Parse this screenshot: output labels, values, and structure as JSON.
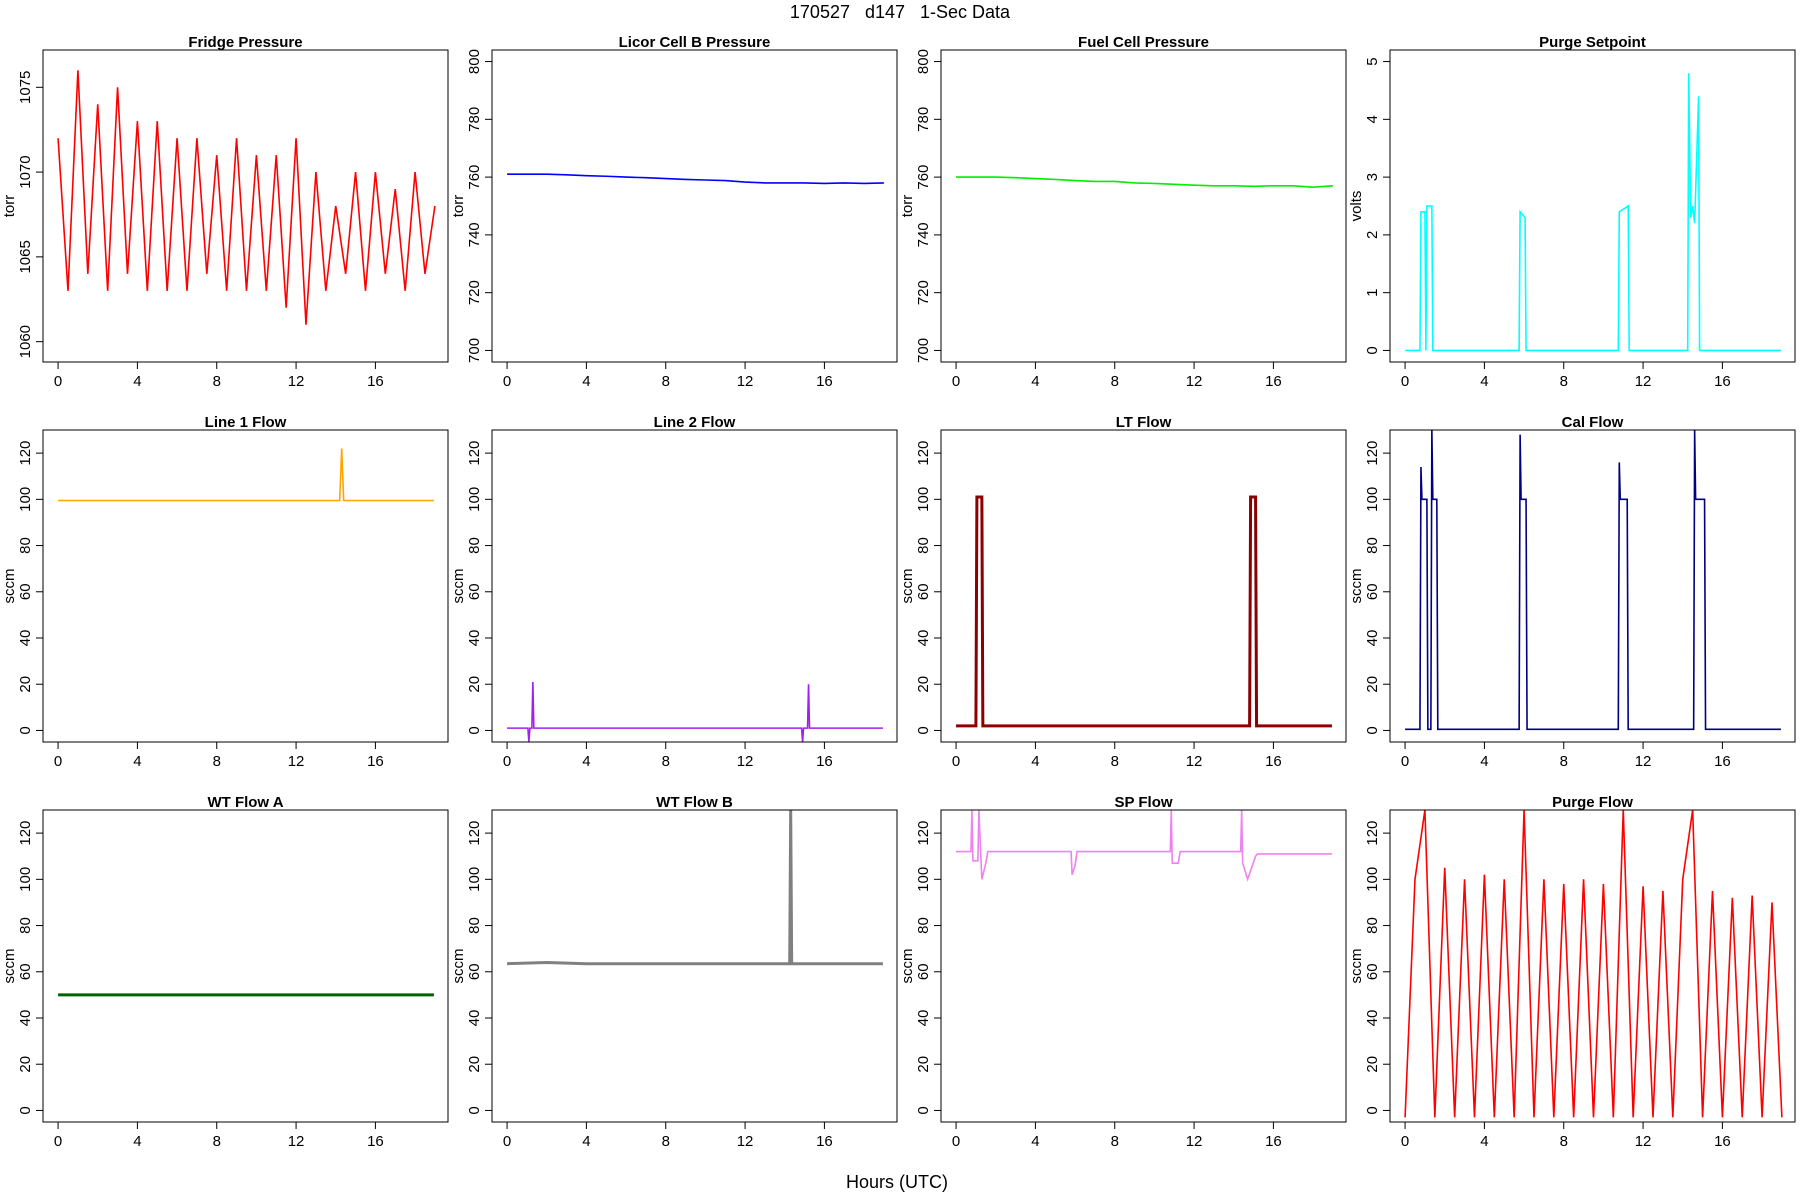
{
  "title": "170527   d147   1-Sec Data",
  "xlabel": "Hours (UTC)",
  "chart_data": [
    {
      "type": "line",
      "title": "Fridge Pressure",
      "ylabel": "torr",
      "x": [
        0,
        0.5,
        1,
        1.5,
        2,
        2.5,
        3,
        3.5,
        4,
        4.5,
        5,
        5.5,
        6,
        6.5,
        7,
        7.5,
        8,
        8.5,
        9,
        9.5,
        10,
        10.5,
        11,
        11.5,
        12,
        12.5,
        13,
        13.5,
        14,
        14.5,
        15,
        15.5,
        16,
        16.5,
        17,
        17.5,
        18,
        18.5,
        19
      ],
      "series": [
        {
          "color": "#ff0000",
          "values": [
            1072,
            1063,
            1076,
            1064,
            1074,
            1063,
            1075,
            1064,
            1073,
            1063,
            1073,
            1063,
            1072,
            1063,
            1072,
            1064,
            1071,
            1063,
            1072,
            1063,
            1071,
            1063,
            1071,
            1062,
            1072,
            1061,
            1070,
            1063,
            1068,
            1064,
            1070,
            1063,
            1070,
            1064,
            1069,
            1063,
            1070,
            1064,
            1068
          ]
        }
      ],
      "xlim": [
        -0.76,
        19.66
      ],
      "ylim": [
        1058.8,
        1077.2
      ],
      "xticks": [
        0,
        4,
        8,
        12,
        16
      ],
      "yticks": [
        1060,
        1065,
        1070,
        1075
      ]
    },
    {
      "type": "line",
      "title": "Licor Cell B Pressure",
      "ylabel": "torr",
      "x": [
        0,
        1,
        2,
        3,
        4,
        5,
        6,
        7,
        8,
        9,
        10,
        11,
        12,
        13,
        14,
        15,
        16,
        17,
        18,
        19
      ],
      "series": [
        {
          "color": "#0000ff",
          "values": [
            761,
            761,
            761,
            760.8,
            760.5,
            760.3,
            760,
            759.8,
            759.5,
            759.2,
            759,
            758.8,
            758.3,
            758,
            758,
            758,
            757.8,
            758,
            757.8,
            758
          ]
        }
      ],
      "xlim": [
        -0.76,
        19.66
      ],
      "ylim": [
        696,
        804
      ],
      "xticks": [
        0,
        4,
        8,
        12,
        16
      ],
      "yticks": [
        700,
        720,
        740,
        760,
        780,
        800
      ]
    },
    {
      "type": "line",
      "title": "Fuel Cell Pressure",
      "ylabel": "torr",
      "x": [
        0,
        1,
        2,
        3,
        4,
        5,
        6,
        7,
        8,
        9,
        10,
        11,
        12,
        13,
        14,
        15,
        16,
        17,
        18,
        19
      ],
      "series": [
        {
          "color": "#00ee00",
          "values": [
            760,
            760,
            760,
            759.8,
            759.5,
            759.2,
            758.8,
            758.5,
            758.5,
            758,
            757.8,
            757.5,
            757.2,
            757,
            757,
            756.8,
            757,
            757,
            756.5,
            757
          ]
        }
      ],
      "xlim": [
        -0.76,
        19.66
      ],
      "ylim": [
        696,
        804
      ],
      "xticks": [
        0,
        4,
        8,
        12,
        16
      ],
      "yticks": [
        700,
        720,
        740,
        760,
        780,
        800
      ]
    },
    {
      "type": "line",
      "title": "Purge Setpoint",
      "ylabel": "volts",
      "x": [
        0,
        0.75,
        0.8,
        1.0,
        1.05,
        1.1,
        1.35,
        1.4,
        5.75,
        5.8,
        6.05,
        6.1,
        10.75,
        10.8,
        11.25,
        11.3,
        14.25,
        14.3,
        14.4,
        14.5,
        14.6,
        14.8,
        14.85,
        18.95
      ],
      "series": [
        {
          "color": "#00ffff",
          "values": [
            0,
            0,
            2.4,
            2.4,
            0,
            2.5,
            2.5,
            0,
            0,
            2.4,
            2.3,
            0,
            0,
            2.4,
            2.5,
            0,
            0,
            4.8,
            2.3,
            2.5,
            2.2,
            4.4,
            0,
            0
          ]
        }
      ],
      "xlim": [
        -0.76,
        19.66
      ],
      "ylim": [
        -0.2,
        5.2
      ],
      "xticks": [
        0,
        4,
        8,
        12,
        16
      ],
      "yticks": [
        0,
        1,
        2,
        3,
        4,
        5
      ]
    },
    {
      "type": "line",
      "title": "Line 1 Flow",
      "ylabel": "sccm",
      "x": [
        0,
        2,
        4,
        6,
        8,
        10,
        12,
        14.2,
        14.3,
        14.4,
        16,
        18,
        18.95
      ],
      "series": [
        {
          "color": "#ffa500",
          "values": [
            99.5,
            99.5,
            99.5,
            99.5,
            99.5,
            99.5,
            99.5,
            99.5,
            122,
            99.5,
            99.5,
            99.5,
            99.5
          ]
        }
      ],
      "xlim": [
        -0.76,
        19.66
      ],
      "ylim": [
        -5,
        130
      ],
      "xticks": [
        0,
        4,
        8,
        12,
        16
      ],
      "yticks": [
        0,
        20,
        40,
        60,
        80,
        100,
        120
      ]
    },
    {
      "type": "line",
      "title": "Line 2 Flow",
      "ylabel": "sccm",
      "x": [
        0,
        1.05,
        1.1,
        1.15,
        1.25,
        1.3,
        1.35,
        4,
        8,
        12,
        14.85,
        14.9,
        14.95,
        15.15,
        15.2,
        15.25,
        18.95
      ],
      "series": [
        {
          "color": "#a020f0",
          "values": [
            1,
            1,
            -5,
            1,
            1,
            21,
            1,
            1,
            1,
            1,
            1,
            -5,
            1,
            1,
            20,
            1,
            1
          ]
        }
      ],
      "xlim": [
        -0.76,
        19.66
      ],
      "ylim": [
        -5,
        130
      ],
      "xticks": [
        0,
        4,
        8,
        12,
        16
      ],
      "yticks": [
        0,
        20,
        40,
        60,
        80,
        100,
        120
      ]
    },
    {
      "type": "line",
      "title": "LT Flow",
      "ylabel": "sccm",
      "x": [
        0,
        1.0,
        1.05,
        1.3,
        1.35,
        14.8,
        14.85,
        15.1,
        15.15,
        18.95
      ],
      "series": [
        {
          "color": "#8b0000",
          "values": [
            2,
            2,
            101,
            101,
            2,
            2,
            101,
            101,
            2,
            2
          ]
        }
      ],
      "xlim": [
        -0.76,
        19.66
      ],
      "ylim": [
        -5,
        130
      ],
      "xticks": [
        0,
        4,
        8,
        12,
        16
      ],
      "yticks": [
        0,
        20,
        40,
        60,
        80,
        100,
        120
      ]
    },
    {
      "type": "line",
      "title": "Cal Flow",
      "ylabel": "sccm",
      "x": [
        0,
        0.75,
        0.8,
        0.85,
        1.1,
        1.15,
        1.3,
        1.35,
        1.4,
        1.6,
        1.65,
        5.75,
        5.8,
        5.85,
        6.1,
        6.15,
        10.75,
        10.8,
        10.85,
        11.2,
        11.25,
        14.55,
        14.6,
        14.65,
        15.1,
        15.15,
        18.95
      ],
      "series": [
        {
          "color": "#000080",
          "values": [
            0.5,
            0.5,
            114,
            100,
            100,
            0.5,
            0.5,
            130,
            100,
            100,
            0.5,
            0.5,
            128,
            100,
            100,
            0.5,
            0.5,
            116,
            100,
            100,
            0.5,
            0.5,
            130,
            100,
            100,
            0.5,
            0.5
          ]
        }
      ],
      "xlim": [
        -0.76,
        19.66
      ],
      "ylim": [
        -5,
        130
      ],
      "xticks": [
        0,
        4,
        8,
        12,
        16
      ],
      "yticks": [
        0,
        20,
        40,
        60,
        80,
        100,
        120
      ]
    },
    {
      "type": "line",
      "title": "WT Flow A",
      "ylabel": "sccm",
      "x": [
        0,
        4,
        8,
        12,
        16,
        18.95
      ],
      "series": [
        {
          "color": "#006400",
          "values": [
            50,
            50,
            50,
            50,
            50,
            50
          ]
        }
      ],
      "xlim": [
        -0.76,
        19.66
      ],
      "ylim": [
        -5,
        130
      ],
      "xticks": [
        0,
        4,
        8,
        12,
        16
      ],
      "yticks": [
        0,
        20,
        40,
        60,
        80,
        100,
        120
      ]
    },
    {
      "type": "line",
      "title": "WT Flow B",
      "ylabel": "sccm",
      "x": [
        0,
        2,
        4,
        8,
        12,
        14.25,
        14.3,
        14.35,
        16,
        18.95
      ],
      "series": [
        {
          "color": "#808080",
          "values": [
            63.5,
            64,
            63.5,
            63.5,
            63.5,
            63.5,
            130,
            63.5,
            63.5,
            63.5
          ]
        }
      ],
      "xlim": [
        -0.76,
        19.66
      ],
      "ylim": [
        -5,
        130
      ],
      "xticks": [
        0,
        4,
        8,
        12,
        16
      ],
      "yticks": [
        0,
        20,
        40,
        60,
        80,
        100,
        120
      ]
    },
    {
      "type": "line",
      "title": "SP Flow",
      "ylabel": "sccm",
      "x": [
        0,
        0.75,
        0.8,
        0.85,
        1.1,
        1.15,
        1.3,
        1.5,
        1.6,
        4,
        5.8,
        5.85,
        6,
        6.1,
        8,
        10.8,
        10.85,
        10.9,
        11.2,
        11.3,
        14.35,
        14.4,
        14.45,
        14.7,
        14.9,
        15.1,
        15.2,
        18.95
      ],
      "series": [
        {
          "color": "#ee82ee",
          "values": [
            112,
            112,
            130,
            108,
            108,
            130,
            100,
            107,
            112,
            112,
            112,
            102,
            106,
            112,
            112,
            112,
            130,
            107,
            107,
            112,
            112,
            130,
            107,
            100,
            105,
            110,
            111,
            111
          ]
        }
      ],
      "xlim": [
        -0.76,
        19.66
      ],
      "ylim": [
        -5,
        130
      ],
      "xticks": [
        0,
        4,
        8,
        12,
        16
      ],
      "yticks": [
        0,
        20,
        40,
        60,
        80,
        100,
        120
      ]
    },
    {
      "type": "line",
      "title": "Purge Flow",
      "ylabel": "sccm",
      "x": [
        0,
        0.5,
        1,
        1.5,
        2,
        2.5,
        3,
        3.5,
        4,
        4.5,
        5,
        5.5,
        6,
        6.5,
        7,
        7.5,
        8,
        8.5,
        9,
        9.5,
        10,
        10.5,
        11,
        11.5,
        12,
        12.5,
        13,
        13.5,
        14,
        14.5,
        15,
        15.5,
        16,
        16.5,
        17,
        17.5,
        18,
        18.5,
        19
      ],
      "series": [
        {
          "color": "#ff0000",
          "values": [
            -3,
            100,
            130,
            -3,
            105,
            -3,
            100,
            -3,
            102,
            -3,
            100,
            -3,
            130,
            -3,
            100,
            -3,
            98,
            -3,
            100,
            -3,
            98,
            -3,
            130,
            -3,
            97,
            -3,
            95,
            -3,
            100,
            130,
            -3,
            95,
            -3,
            92,
            -3,
            93,
            -3,
            90,
            -3
          ]
        }
      ],
      "xlim": [
        -0.76,
        19.66
      ],
      "ylim": [
        -5,
        130
      ],
      "xticks": [
        0,
        4,
        8,
        12,
        16
      ],
      "yticks": [
        0,
        20,
        40,
        60,
        80,
        100,
        120
      ]
    }
  ]
}
